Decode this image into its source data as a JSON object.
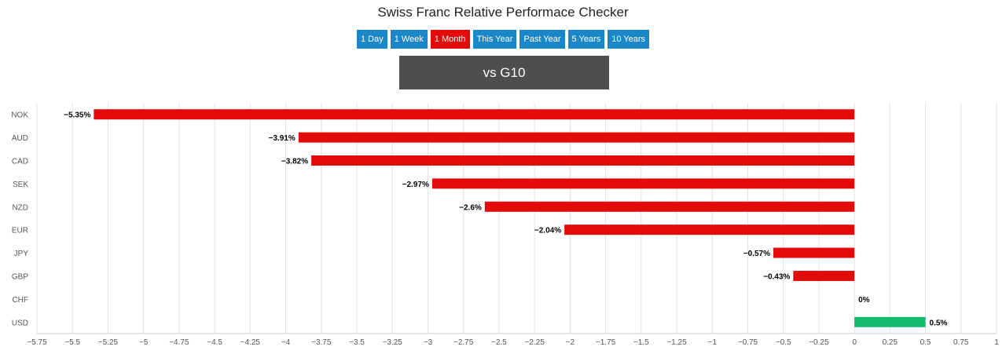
{
  "page": {
    "title": "Swiss Franc Relative Performace Checker",
    "buttons": [
      {
        "label": "1 Day",
        "active": false
      },
      {
        "label": "1 Week",
        "active": false
      },
      {
        "label": "1 Month",
        "active": true
      },
      {
        "label": "This Year",
        "active": false
      },
      {
        "label": "Past Year",
        "active": false
      },
      {
        "label": "5 Years",
        "active": false
      },
      {
        "label": "10 Years",
        "active": false
      }
    ],
    "comparison_label": "vs G10"
  },
  "colors": {
    "negative": "#e30a0a",
    "positive": "#13bb6d",
    "button": "#1a87c9",
    "button_active": "#e30a0a",
    "comparison_box": "#4e4e4e",
    "grid": "#e3e3e3"
  },
  "chart_data": {
    "type": "bar",
    "orientation": "horizontal",
    "categories": [
      "NOK",
      "AUD",
      "CAD",
      "SEK",
      "NZD",
      "EUR",
      "JPY",
      "GBP",
      "CHF",
      "USD"
    ],
    "values": [
      -5.35,
      -3.91,
      -3.82,
      -2.97,
      -2.6,
      -2.04,
      -0.57,
      -0.43,
      0,
      0.5
    ],
    "data_labels": [
      "−5.35%",
      "−3.91%",
      "−3.82%",
      "−2.97%",
      "−2.6%",
      "−2.04%",
      "−0.57%",
      "−0.43%",
      "0%",
      "0.5%"
    ],
    "xlim": [
      -5.75,
      1
    ],
    "x_ticks": [
      -5.75,
      -5.5,
      -5.25,
      -5,
      -4.75,
      -4.5,
      -4.25,
      -4,
      -3.75,
      -3.5,
      -3.25,
      -3,
      -2.75,
      -2.5,
      -2.25,
      -2,
      -1.75,
      -1.5,
      -1.25,
      -1,
      -0.75,
      -0.5,
      -0.25,
      0,
      0.25,
      0.5,
      0.75,
      1
    ],
    "x_tick_labels": [
      "−5.75",
      "−5.5",
      "−5.25",
      "−5",
      "−4.75",
      "−4.5",
      "−4.25",
      "−4",
      "−3.75",
      "−3.5",
      "−3.25",
      "−3",
      "−2.75",
      "−2.5",
      "−2.25",
      "−2",
      "−1.75",
      "−1.5",
      "−1.25",
      "−1",
      "−0.75",
      "−0.5",
      "−0.25",
      "0",
      "0.25",
      "0.5",
      "0.75",
      "1"
    ],
    "grid": true,
    "legend": "none"
  }
}
